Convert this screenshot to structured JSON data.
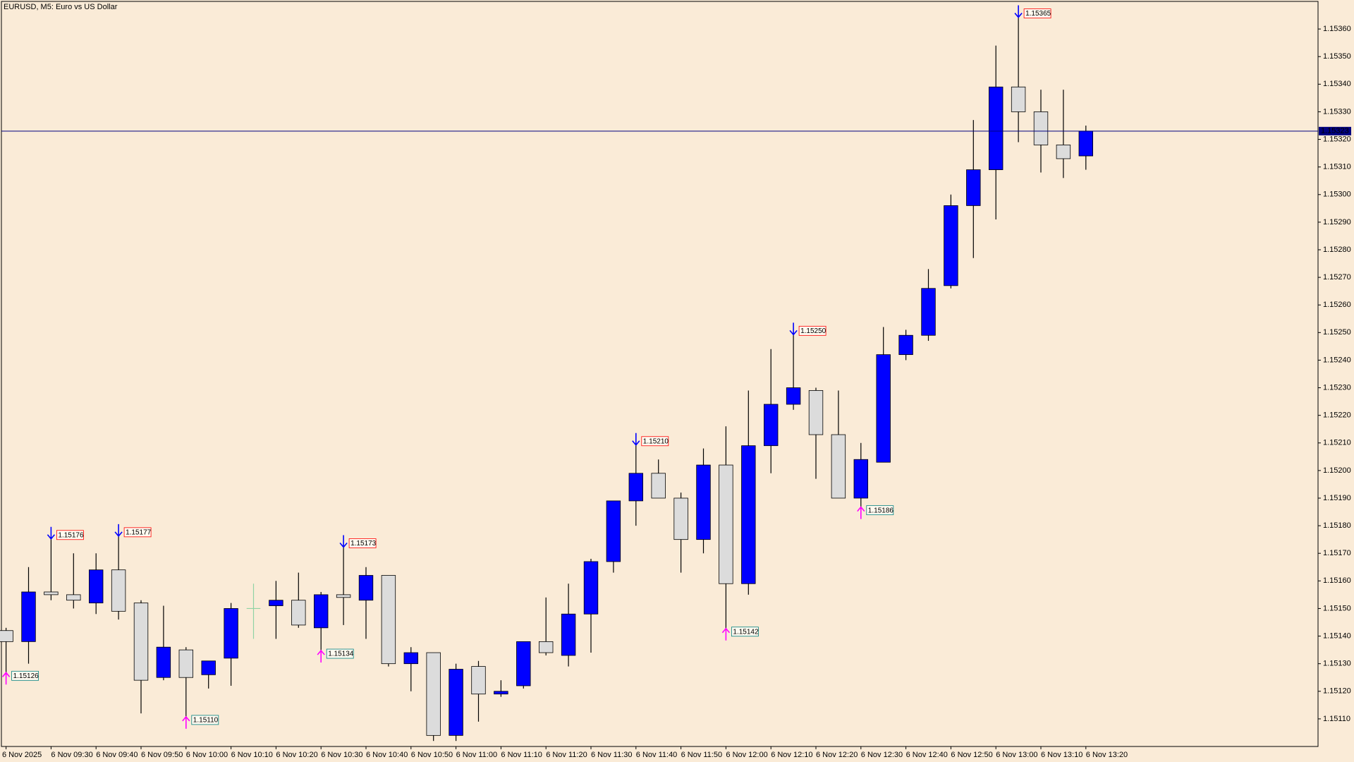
{
  "chart_data": {
    "type": "candlestick",
    "title": "EURUSD, M5:  Euro vs US Dollar",
    "categories": [
      "6 Nov 2025",
      null,
      "6 Nov 09:30",
      null,
      "6 Nov 09:40",
      null,
      "6 Nov 09:50",
      null,
      "6 Nov 10:00",
      null,
      "6 Nov 10:10",
      null,
      "6 Nov 10:20",
      null,
      "6 Nov 10:30",
      null,
      "6 Nov 10:40",
      null,
      "6 Nov 10:50",
      null,
      "6 Nov 11:00",
      null,
      "6 Nov 11:10",
      null,
      "6 Nov 11:20",
      null,
      "6 Nov 11:30",
      null,
      "6 Nov 11:40",
      null,
      "6 Nov 11:50",
      null,
      "6 Nov 12:00",
      null,
      "6 Nov 12:10",
      null,
      "6 Nov 12:20",
      null,
      "6 Nov 12:30",
      null,
      "6 Nov 12:40",
      null,
      "6 Nov 12:50",
      null,
      "6 Nov 13:00",
      null,
      "6 Nov 13:10",
      null,
      "6 Nov 13:20"
    ],
    "open": [
      1.15142,
      1.15138,
      1.15156,
      1.15155,
      1.15152,
      1.15164,
      1.15152,
      1.15125,
      1.15135,
      1.15126,
      1.15132,
      1.1515,
      1.15151,
      1.15153,
      1.15143,
      1.15155,
      1.15153,
      1.15162,
      1.1513,
      1.15134,
      1.15104,
      1.15129,
      1.15119,
      1.15122,
      1.15138,
      1.15133,
      1.15148,
      1.15167,
      1.15189,
      1.15199,
      1.1519,
      1.15175,
      1.15202,
      1.15159,
      1.15209,
      1.15224,
      1.15229,
      1.15213,
      1.1519,
      1.15203,
      1.15242,
      1.15249,
      1.15267,
      1.15296,
      1.15309,
      1.15339,
      1.1533,
      1.15318,
      1.15314
    ],
    "high": [
      1.15143,
      1.15165,
      1.15176,
      1.1517,
      1.1517,
      1.15177,
      1.15153,
      1.15151,
      1.15136,
      1.15131,
      1.15152,
      1.15159,
      1.1516,
      1.15163,
      1.15156,
      1.15173,
      1.15165,
      1.15162,
      1.15136,
      1.15134,
      1.1513,
      1.15131,
      1.15124,
      1.15138,
      1.15154,
      1.15159,
      1.15168,
      1.15189,
      1.1521,
      1.15204,
      1.15192,
      1.15208,
      1.15216,
      1.15229,
      1.15244,
      1.1525,
      1.1523,
      1.15229,
      1.1521,
      1.15252,
      1.15251,
      1.15273,
      1.153,
      1.15327,
      1.15354,
      1.15365,
      1.15338,
      1.15338,
      1.15325
    ],
    "low": [
      1.15126,
      1.1513,
      1.15153,
      1.1515,
      1.15148,
      1.15146,
      1.15112,
      1.15124,
      1.1511,
      1.15121,
      1.15122,
      1.15139,
      1.15139,
      1.15143,
      1.15134,
      1.15144,
      1.15139,
      1.15129,
      1.1512,
      1.15102,
      1.15102,
      1.15109,
      1.15118,
      1.15121,
      1.15133,
      1.15129,
      1.15134,
      1.15163,
      1.1518,
      1.1519,
      1.15163,
      1.1517,
      1.15142,
      1.15155,
      1.15199,
      1.15222,
      1.15197,
      1.1519,
      1.15186,
      1.15203,
      1.1524,
      1.15247,
      1.15266,
      1.15277,
      1.15291,
      1.15319,
      1.15308,
      1.15306,
      1.15309
    ],
    "close": [
      1.15138,
      1.15156,
      1.15155,
      1.15153,
      1.15164,
      1.15149,
      1.15124,
      1.15136,
      1.15125,
      1.15131,
      1.1515,
      1.1515,
      1.15153,
      1.15144,
      1.15155,
      1.15154,
      1.15162,
      1.1513,
      1.15134,
      1.15104,
      1.15128,
      1.15119,
      1.1512,
      1.15138,
      1.15134,
      1.15148,
      1.15167,
      1.15189,
      1.15199,
      1.1519,
      1.15175,
      1.15202,
      1.15159,
      1.15209,
      1.15224,
      1.1523,
      1.15213,
      1.1519,
      1.15204,
      1.15242,
      1.15249,
      1.15266,
      1.15296,
      1.15309,
      1.15339,
      1.1533,
      1.15318,
      1.15313,
      1.15323
    ],
    "high_labels": [
      null,
      null,
      "1.15176",
      null,
      null,
      "1.15177",
      null,
      null,
      null,
      null,
      null,
      null,
      null,
      null,
      null,
      "1.15173",
      null,
      null,
      null,
      null,
      null,
      null,
      null,
      null,
      null,
      null,
      null,
      null,
      "1.15210",
      null,
      null,
      null,
      null,
      null,
      null,
      "1.15250",
      null,
      null,
      null,
      null,
      null,
      null,
      null,
      null,
      null,
      "1.15365",
      null,
      null,
      null
    ],
    "low_labels": [
      "1.15126",
      null,
      null,
      null,
      null,
      null,
      null,
      null,
      "1.15110",
      null,
      null,
      null,
      null,
      null,
      "1.15134",
      null,
      null,
      null,
      null,
      null,
      null,
      null,
      null,
      null,
      null,
      null,
      null,
      null,
      null,
      null,
      null,
      null,
      "1.15142",
      null,
      null,
      null,
      null,
      null,
      "1.15186",
      null,
      null,
      null,
      null,
      null,
      null,
      null,
      null,
      null,
      null
    ],
    "bid": 1.15323,
    "ylim": [
      1.151,
      1.1537
    ],
    "yticks": [
      {
        "value": 1.1511,
        "label": "1.15110"
      },
      {
        "value": 1.1512,
        "label": "1.15120"
      },
      {
        "value": 1.1513,
        "label": "1.15130"
      },
      {
        "value": 1.1514,
        "label": "1.15140"
      },
      {
        "value": 1.1515,
        "label": "1.15150"
      },
      {
        "value": 1.1516,
        "label": "1.15160"
      },
      {
        "value": 1.1517,
        "label": "1.15170"
      },
      {
        "value": 1.1518,
        "label": "1.15180"
      },
      {
        "value": 1.1519,
        "label": "1.15190"
      },
      {
        "value": 1.152,
        "label": "1.15200"
      },
      {
        "value": 1.1521,
        "label": "1.15210"
      },
      {
        "value": 1.1522,
        "label": "1.15220"
      },
      {
        "value": 1.1523,
        "label": "1.15230"
      },
      {
        "value": 1.1524,
        "label": "1.15240"
      },
      {
        "value": 1.1525,
        "label": "1.15250"
      },
      {
        "value": 1.1526,
        "label": "1.15260"
      },
      {
        "value": 1.1527,
        "label": "1.15270"
      },
      {
        "value": 1.1528,
        "label": "1.15280"
      },
      {
        "value": 1.1529,
        "label": "1.15290"
      },
      {
        "value": 1.153,
        "label": "1.15300"
      },
      {
        "value": 1.1531,
        "label": "1.15310"
      },
      {
        "value": 1.1532,
        "label": "1.15320"
      },
      {
        "value": 1.1533,
        "label": "1.15330"
      },
      {
        "value": 1.1534,
        "label": "1.15340"
      },
      {
        "value": 1.1535,
        "label": "1.15350"
      },
      {
        "value": 1.1536,
        "label": "1.15360"
      }
    ],
    "up_color": "#0000ff",
    "down_color": "#dcdcdc",
    "doji_color": "#8fd3a3",
    "high_marker_color": "#0000ff",
    "low_marker_color": "#ff00ff",
    "high_label_color": "#ff0000",
    "low_label_color": "#008080",
    "bid_color": "#000080"
  }
}
